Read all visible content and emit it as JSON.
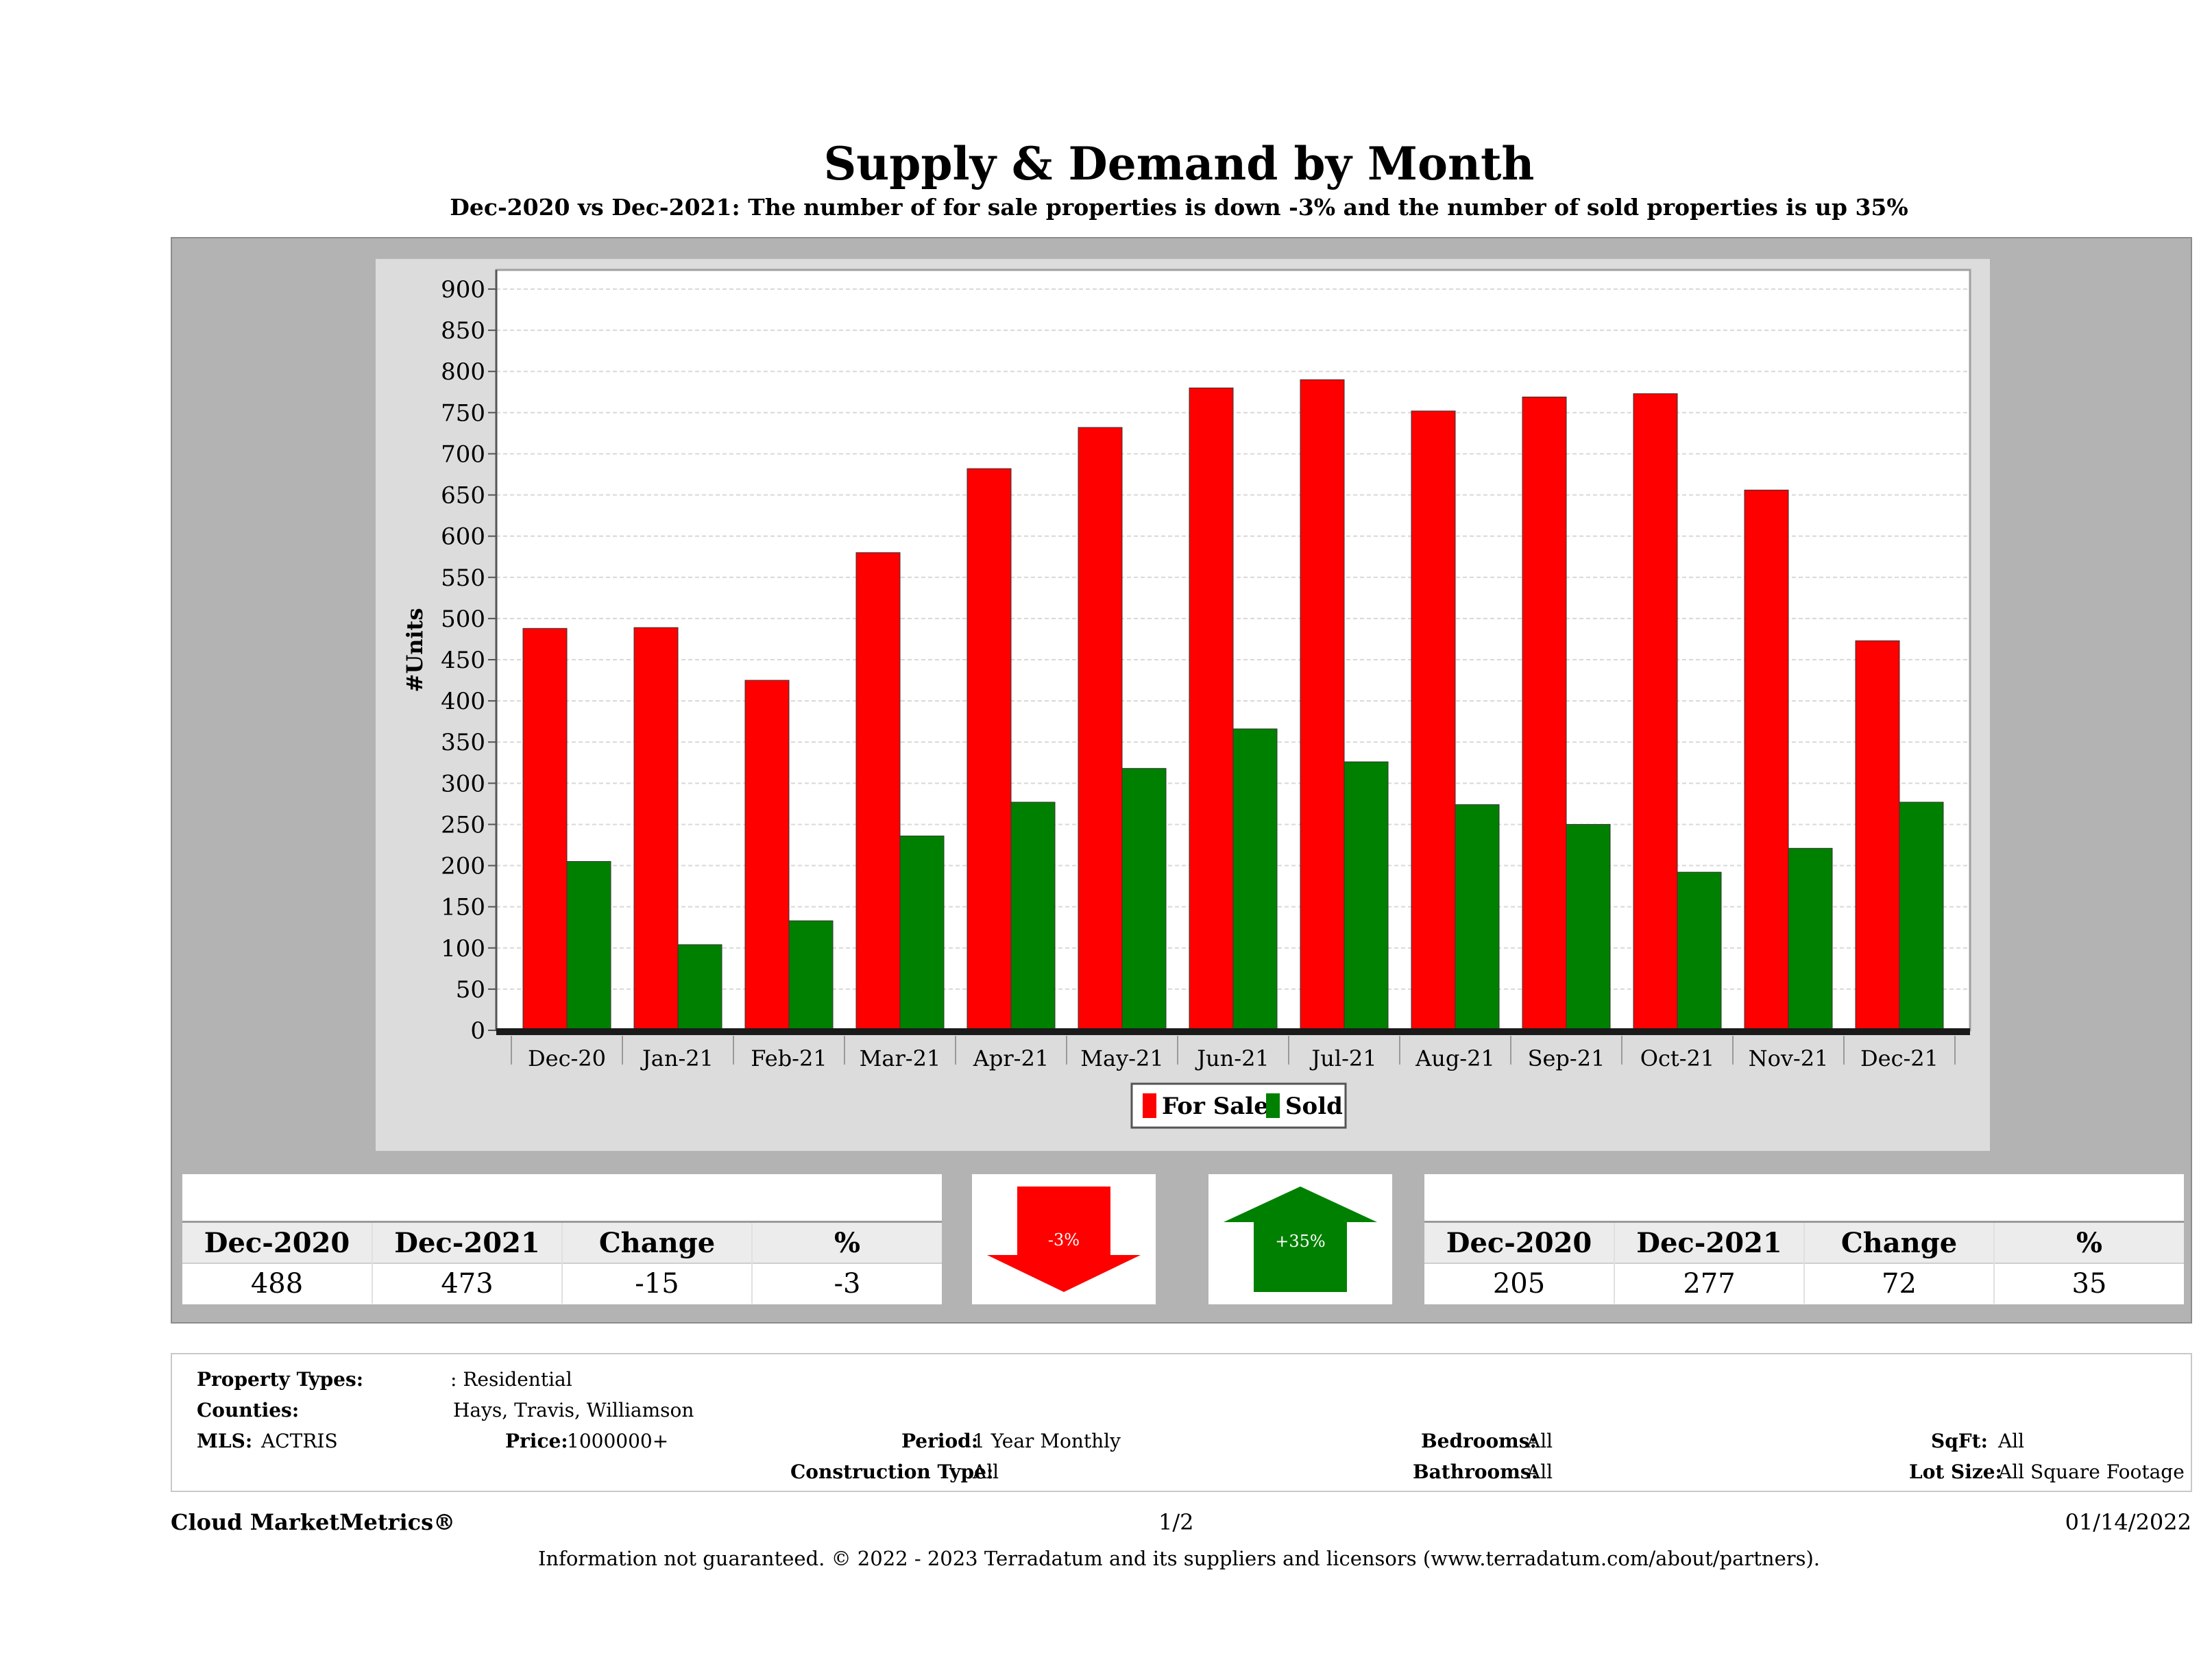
{
  "title": "Supply & Demand by Month",
  "subtitle": "Dec-2020 vs Dec-2021: The number of for sale properties is down -3% and the number of sold properties is up 35%",
  "chart_data": {
    "type": "bar",
    "ylabel": "#Units",
    "xlabel": "",
    "ylim": [
      0,
      900
    ],
    "yticks": [
      0,
      50,
      100,
      150,
      200,
      250,
      300,
      350,
      400,
      450,
      500,
      550,
      600,
      650,
      700,
      750,
      800,
      850,
      900
    ],
    "categories": [
      "Dec-20",
      "Jan-21",
      "Feb-21",
      "Mar-21",
      "Apr-21",
      "May-21",
      "Jun-21",
      "Jul-21",
      "Aug-21",
      "Sep-21",
      "Oct-21",
      "Nov-21",
      "Dec-21"
    ],
    "series": [
      {
        "name": "For Sale",
        "color": "#ff0000",
        "values": [
          488,
          489,
          425,
          580,
          682,
          732,
          780,
          790,
          752,
          769,
          773,
          656,
          473
        ]
      },
      {
        "name": "Sold",
        "color": "#008000",
        "values": [
          205,
          104,
          133,
          236,
          277,
          318,
          366,
          326,
          274,
          250,
          192,
          221,
          277
        ]
      }
    ],
    "grid": true,
    "legend": "bottom-center"
  },
  "for_sale_stats": {
    "headers": [
      "Dec-2020",
      "Dec-2021",
      "Change",
      "%"
    ],
    "values": [
      "488",
      "473",
      "-15",
      "-3"
    ]
  },
  "sold_stats": {
    "headers": [
      "Dec-2020",
      "Dec-2021",
      "Change",
      "%"
    ],
    "values": [
      "205",
      "277",
      "72",
      "35"
    ]
  },
  "indicators": {
    "down_label": "-3%",
    "down_color": "#ff0000",
    "up_label": "+35%",
    "up_color": "#008000"
  },
  "info": {
    "property_types_label": "Property Types:",
    "property_types_value": ": Residential",
    "counties_label": "Counties:",
    "counties_value": "Hays, Travis, Williamson",
    "mls_label": "MLS:",
    "mls_value": "ACTRIS",
    "price_label": "Price:",
    "price_value": "1000000+",
    "period_label": "Period:",
    "period_value": "1 Year Monthly",
    "construction_label": "Construction Type:",
    "construction_value": "All",
    "bedrooms_label": "Bedrooms:",
    "bedrooms_value": "All",
    "bathrooms_label": "Bathrooms:",
    "bathrooms_value": "All",
    "sqft_label": "SqFt:",
    "sqft_value": "All",
    "lotsize_label": "Lot Size:",
    "lotsize_value": "All Square Footage"
  },
  "footer": {
    "brand": "Cloud MarketMetrics®",
    "page": "1/2",
    "date": "01/14/2022",
    "disclaimer": "Information not guaranteed. © 2022 - 2023 Terradatum and its suppliers and licensors (www.terradatum.com/about/partners)."
  }
}
